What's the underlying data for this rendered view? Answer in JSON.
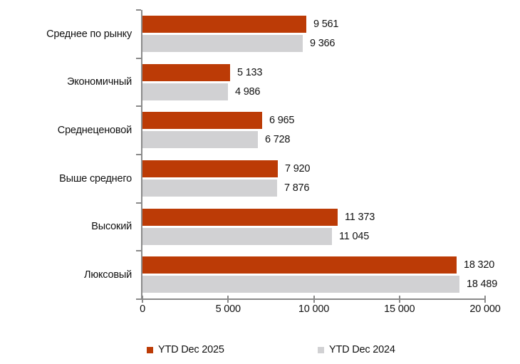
{
  "chart_data": {
    "type": "bar",
    "orientation": "horizontal",
    "title": "",
    "xlabel": "",
    "ylabel": "",
    "categories": [
      "Среднее по рынку",
      "Экономичный",
      "Среднеценовой",
      "Выше среднего",
      "Высокий",
      "Люксовый"
    ],
    "series": [
      {
        "name": "YTD Dec 2025",
        "color": "#bc3b06",
        "values": [
          9561,
          5133,
          6965,
          7920,
          11373,
          18320
        ],
        "labels": [
          "9 561",
          "5 133",
          "6 965",
          "7 920",
          "11 373",
          "18 320"
        ]
      },
      {
        "name": "YTD Dec 2024",
        "color": "#d1d1d3",
        "values": [
          9366,
          4986,
          6728,
          7876,
          11045,
          18489
        ],
        "labels": [
          "9 366",
          "4 986",
          "6 728",
          "7 876",
          "11 045",
          "18 489"
        ]
      }
    ],
    "xlim": [
      0,
      20000
    ],
    "x_ticks": [
      0,
      5000,
      10000,
      15000,
      20000
    ],
    "x_tick_labels": [
      "0",
      "5 000",
      "10 000",
      "15 000",
      "20 000"
    ],
    "grid": false,
    "legend_position": "bottom",
    "axis_color": "#8a8a8a",
    "text_color": "#111111",
    "background_color": "#ffffff"
  }
}
